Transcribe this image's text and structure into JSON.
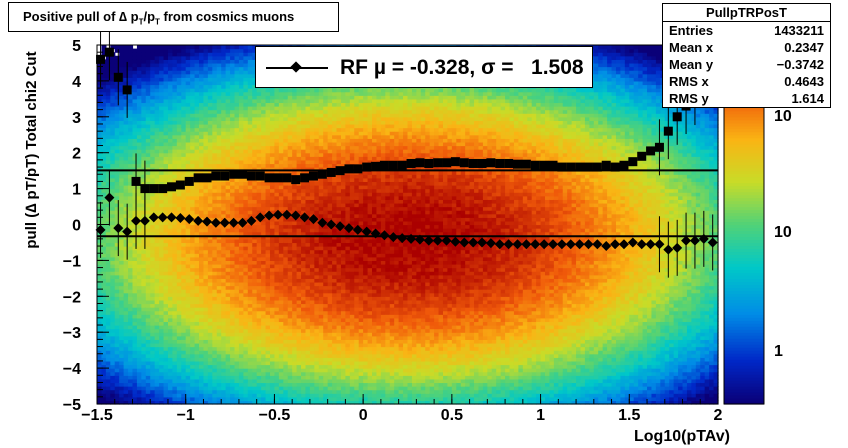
{
  "title": {
    "prefix": "Positive pull of ∆ p",
    "sub1": "T",
    "mid": "/p",
    "sub2": "T",
    "suffix": " from cosmics muons"
  },
  "stats": {
    "name": "PullpTRPosT",
    "rows": [
      {
        "label": "Entries",
        "value": "1433211"
      },
      {
        "label": "Mean x",
        "value": "0.2347"
      },
      {
        "label": "Mean y",
        "value": "−0.3742"
      },
      {
        "label": "RMS x",
        "value": "0.4643"
      },
      {
        "label": "RMS y",
        "value": "1.614"
      }
    ]
  },
  "legend": {
    "text": "RF µ = -0.328, σ =   1.508"
  },
  "chart_data": {
    "type": "heatmap",
    "xlabel": "Log10(pTAv)",
    "ylabel": "pull (∆ pT/pT)  Total chi2 Cut",
    "xlim": [
      -1.5,
      2
    ],
    "ylim": [
      -5,
      5
    ],
    "x_ticks": [
      "−1.5",
      "−1",
      "−0.5",
      "0",
      "0.5",
      "1",
      "1.5",
      "2"
    ],
    "y_ticks": [
      "−5",
      "−4",
      "−3",
      "−2",
      "−1",
      "0",
      "1",
      "2",
      "3",
      "4",
      "5"
    ],
    "z_log": true,
    "colorbar_ticks": [
      "1",
      "10",
      "10"
    ],
    "density_model": {
      "x_center": 0.25,
      "x_width": 0.62,
      "y_center": -0.35,
      "y_width": 1.45,
      "peak_counts": 3000
    },
    "mean_series": {
      "marker": "diamond",
      "x": [
        -1.48,
        -1.43,
        -1.38,
        -1.33,
        -1.28,
        -1.23,
        -1.18,
        -1.13,
        -1.08,
        -1.03,
        -0.98,
        -0.93,
        -0.88,
        -0.83,
        -0.78,
        -0.73,
        -0.68,
        -0.63,
        -0.58,
        -0.53,
        -0.48,
        -0.43,
        -0.38,
        -0.33,
        -0.28,
        -0.23,
        -0.18,
        -0.13,
        -0.08,
        -0.03,
        0.02,
        0.07,
        0.12,
        0.17,
        0.22,
        0.27,
        0.32,
        0.37,
        0.42,
        0.47,
        0.52,
        0.57,
        0.62,
        0.67,
        0.72,
        0.77,
        0.82,
        0.87,
        0.92,
        0.97,
        1.02,
        1.07,
        1.12,
        1.17,
        1.22,
        1.27,
        1.32,
        1.37,
        1.42,
        1.47,
        1.52,
        1.57,
        1.62,
        1.67,
        1.72,
        1.77,
        1.82,
        1.87,
        1.92,
        1.97
      ],
      "y": [
        -0.15,
        0.75,
        -0.1,
        -0.2,
        0.1,
        0.1,
        0.2,
        0.2,
        0.2,
        0.18,
        0.15,
        0.1,
        0.08,
        0.05,
        0.05,
        0.05,
        0.05,
        0.1,
        0.2,
        0.25,
        0.27,
        0.27,
        0.25,
        0.2,
        0.15,
        0.05,
        0.0,
        -0.05,
        -0.1,
        -0.15,
        -0.2,
        -0.25,
        -0.3,
        -0.35,
        -0.38,
        -0.4,
        -0.42,
        -0.45,
        -0.45,
        -0.45,
        -0.48,
        -0.5,
        -0.5,
        -0.5,
        -0.52,
        -0.55,
        -0.55,
        -0.55,
        -0.55,
        -0.55,
        -0.55,
        -0.55,
        -0.55,
        -0.55,
        -0.55,
        -0.55,
        -0.55,
        -0.6,
        -0.55,
        -0.55,
        -0.5,
        -0.55,
        -0.55,
        -0.55,
        -0.7,
        -0.65,
        -0.45,
        -0.45,
        -0.4,
        -0.5
      ]
    },
    "rms_series": {
      "marker": "square",
      "x": [
        -1.48,
        -1.43,
        -1.38,
        -1.33,
        -1.28,
        -1.23,
        -1.18,
        -1.13,
        -1.08,
        -1.03,
        -0.98,
        -0.93,
        -0.88,
        -0.83,
        -0.78,
        -0.73,
        -0.68,
        -0.63,
        -0.58,
        -0.53,
        -0.48,
        -0.43,
        -0.38,
        -0.33,
        -0.28,
        -0.23,
        -0.18,
        -0.13,
        -0.08,
        -0.03,
        0.02,
        0.07,
        0.12,
        0.17,
        0.22,
        0.27,
        0.32,
        0.37,
        0.42,
        0.47,
        0.52,
        0.57,
        0.62,
        0.67,
        0.72,
        0.77,
        0.82,
        0.87,
        0.92,
        0.97,
        1.02,
        1.07,
        1.12,
        1.17,
        1.22,
        1.27,
        1.32,
        1.37,
        1.42,
        1.47,
        1.52,
        1.57,
        1.62,
        1.67,
        1.72,
        1.77,
        1.82,
        1.87,
        1.92,
        1.97
      ],
      "y": [
        4.6,
        4.8,
        4.1,
        3.75,
        1.2,
        1.0,
        1.0,
        1.0,
        1.05,
        1.1,
        1.2,
        1.3,
        1.3,
        1.35,
        1.35,
        1.4,
        1.4,
        1.35,
        1.35,
        1.3,
        1.3,
        1.3,
        1.25,
        1.3,
        1.35,
        1.4,
        1.45,
        1.5,
        1.55,
        1.55,
        1.6,
        1.62,
        1.65,
        1.65,
        1.65,
        1.7,
        1.72,
        1.7,
        1.72,
        1.72,
        1.75,
        1.72,
        1.7,
        1.7,
        1.72,
        1.7,
        1.7,
        1.68,
        1.68,
        1.65,
        1.65,
        1.65,
        1.6,
        1.6,
        1.6,
        1.6,
        1.6,
        1.65,
        1.6,
        1.65,
        1.75,
        1.9,
        2.05,
        2.15,
        2.6,
        3.0,
        3.3,
        3.55,
        4.15,
        4.6
      ]
    },
    "fit_lines": [
      {
        "name": "mean",
        "y": -0.328
      },
      {
        "name": "sigma",
        "y": 1.508
      }
    ]
  }
}
